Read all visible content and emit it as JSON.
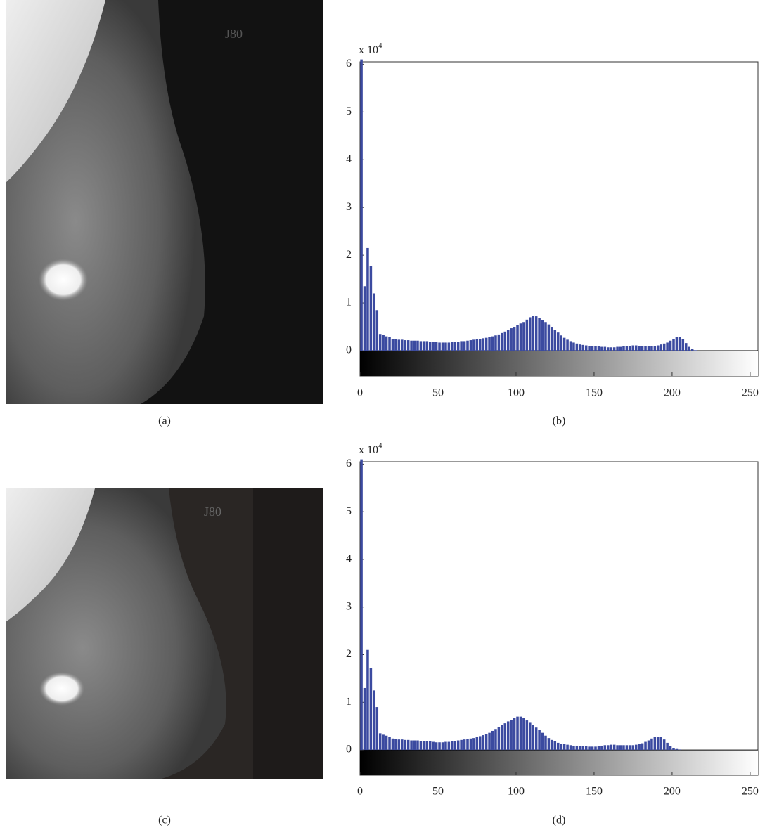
{
  "images": [
    {
      "caption": "(a)"
    },
    {
      "caption": "(c)"
    }
  ],
  "chart_data": [
    {
      "type": "histogram",
      "caption": "(b)",
      "ylabel": "x 10",
      "ylabel_exponent": "4",
      "color": "#3b4aa0",
      "bins": [
        0,
        2,
        4,
        6,
        8,
        10,
        12,
        14,
        16,
        18,
        20,
        22,
        24,
        26,
        28,
        30,
        32,
        34,
        36,
        38,
        40,
        42,
        44,
        46,
        48,
        50,
        52,
        54,
        56,
        58,
        60,
        62,
        64,
        66,
        68,
        70,
        72,
        74,
        76,
        78,
        80,
        82,
        84,
        86,
        88,
        90,
        92,
        94,
        96,
        98,
        100,
        102,
        104,
        106,
        108,
        110,
        112,
        114,
        116,
        118,
        120,
        122,
        124,
        126,
        128,
        130,
        132,
        134,
        136,
        138,
        140,
        142,
        144,
        146,
        148,
        150,
        152,
        154,
        156,
        158,
        160,
        162,
        164,
        166,
        168,
        170,
        172,
        174,
        176,
        178,
        180,
        182,
        184,
        186,
        188,
        190,
        192,
        194,
        196,
        198,
        200,
        202,
        204,
        206,
        208,
        210,
        212,
        214,
        216
      ],
      "values": [
        6.1,
        1.35,
        2.15,
        1.78,
        1.2,
        0.85,
        0.35,
        0.33,
        0.3,
        0.28,
        0.25,
        0.24,
        0.23,
        0.23,
        0.22,
        0.22,
        0.21,
        0.21,
        0.21,
        0.2,
        0.2,
        0.2,
        0.19,
        0.19,
        0.18,
        0.17,
        0.17,
        0.17,
        0.17,
        0.18,
        0.18,
        0.19,
        0.2,
        0.2,
        0.21,
        0.22,
        0.23,
        0.24,
        0.25,
        0.26,
        0.27,
        0.28,
        0.3,
        0.32,
        0.34,
        0.37,
        0.4,
        0.43,
        0.47,
        0.5,
        0.54,
        0.57,
        0.6,
        0.65,
        0.7,
        0.73,
        0.72,
        0.68,
        0.64,
        0.6,
        0.55,
        0.5,
        0.44,
        0.38,
        0.32,
        0.27,
        0.23,
        0.2,
        0.17,
        0.15,
        0.13,
        0.12,
        0.11,
        0.1,
        0.1,
        0.09,
        0.09,
        0.08,
        0.08,
        0.07,
        0.07,
        0.07,
        0.08,
        0.08,
        0.09,
        0.1,
        0.1,
        0.11,
        0.11,
        0.1,
        0.1,
        0.1,
        0.09,
        0.09,
        0.1,
        0.11,
        0.13,
        0.15,
        0.17,
        0.21,
        0.25,
        0.29,
        0.29,
        0.24,
        0.16,
        0.08,
        0.04,
        0.01
      ],
      "xlim": [
        0,
        255
      ],
      "ylim": [
        -0.53,
        6.05
      ],
      "xticks": [
        0,
        50,
        100,
        150,
        200,
        250
      ],
      "yticks": [
        0,
        1,
        2,
        3,
        4,
        5,
        6
      ]
    },
    {
      "type": "histogram",
      "caption": "(d)",
      "ylabel": "x 10",
      "ylabel_exponent": "4",
      "color": "#3b4aa0",
      "bins": [
        0,
        2,
        4,
        6,
        8,
        10,
        12,
        14,
        16,
        18,
        20,
        22,
        24,
        26,
        28,
        30,
        32,
        34,
        36,
        38,
        40,
        42,
        44,
        46,
        48,
        50,
        52,
        54,
        56,
        58,
        60,
        62,
        64,
        66,
        68,
        70,
        72,
        74,
        76,
        78,
        80,
        82,
        84,
        86,
        88,
        90,
        92,
        94,
        96,
        98,
        100,
        102,
        104,
        106,
        108,
        110,
        112,
        114,
        116,
        118,
        120,
        122,
        124,
        126,
        128,
        130,
        132,
        134,
        136,
        138,
        140,
        142,
        144,
        146,
        148,
        150,
        152,
        154,
        156,
        158,
        160,
        162,
        164,
        166,
        168,
        170,
        172,
        174,
        176,
        178,
        180,
        182,
        184,
        186,
        188,
        190,
        192,
        194,
        196,
        198,
        200,
        202,
        204,
        206,
        208,
        210,
        212,
        214,
        216
      ],
      "values": [
        6.1,
        1.3,
        2.1,
        1.72,
        1.25,
        0.9,
        0.35,
        0.32,
        0.3,
        0.27,
        0.24,
        0.23,
        0.22,
        0.22,
        0.21,
        0.21,
        0.2,
        0.2,
        0.2,
        0.19,
        0.19,
        0.18,
        0.18,
        0.17,
        0.16,
        0.16,
        0.16,
        0.17,
        0.17,
        0.18,
        0.19,
        0.2,
        0.21,
        0.22,
        0.23,
        0.24,
        0.25,
        0.27,
        0.29,
        0.31,
        0.33,
        0.36,
        0.4,
        0.44,
        0.48,
        0.52,
        0.56,
        0.6,
        0.63,
        0.67,
        0.7,
        0.7,
        0.67,
        0.62,
        0.57,
        0.52,
        0.47,
        0.42,
        0.36,
        0.3,
        0.25,
        0.21,
        0.18,
        0.15,
        0.13,
        0.12,
        0.11,
        0.1,
        0.09,
        0.09,
        0.08,
        0.08,
        0.08,
        0.07,
        0.07,
        0.07,
        0.08,
        0.09,
        0.1,
        0.1,
        0.11,
        0.11,
        0.1,
        0.1,
        0.1,
        0.1,
        0.1,
        0.1,
        0.11,
        0.13,
        0.14,
        0.17,
        0.2,
        0.24,
        0.27,
        0.28,
        0.27,
        0.22,
        0.15,
        0.08,
        0.04,
        0.02,
        0.01,
        0,
        0,
        0,
        0,
        0
      ],
      "xlim": [
        0,
        255
      ],
      "ylim": [
        -0.53,
        6.05
      ],
      "xticks": [
        0,
        50,
        100,
        150,
        200,
        250
      ],
      "yticks": [
        0,
        1,
        2,
        3,
        4,
        5,
        6
      ]
    }
  ]
}
